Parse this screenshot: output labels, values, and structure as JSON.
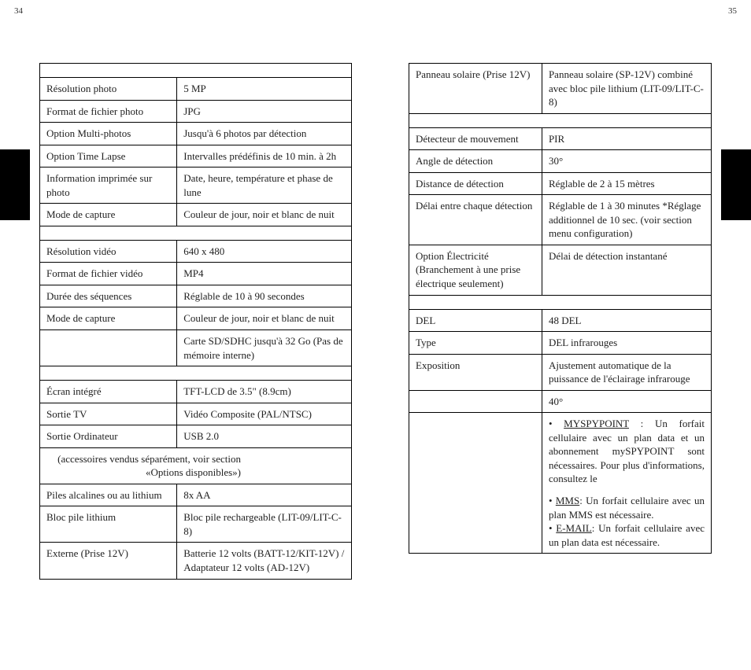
{
  "pageLeft": "34",
  "pageRight": "35",
  "leftTable": {
    "rows": [
      {
        "type": "empty"
      },
      {
        "label": "Résolution photo",
        "value": "5 MP"
      },
      {
        "label": "Format de fichier photo",
        "value": "JPG"
      },
      {
        "label": "Option Multi-photos",
        "value": "Jusqu'à 6 photos par détection"
      },
      {
        "label": "Option Time Lapse",
        "value": "Intervalles prédéfinis de 10 min. à 2h"
      },
      {
        "label": "Information imprimée sur photo",
        "value": "Date, heure, température et phase de lune"
      },
      {
        "label": "Mode de capture",
        "value": "Couleur de jour, noir et blanc de nuit"
      },
      {
        "type": "empty"
      },
      {
        "label": "Résolution vidéo",
        "value": "640 x 480"
      },
      {
        "label": "Format de fichier vidéo",
        "value": "MP4"
      },
      {
        "label": "Durée des séquences",
        "value": "Réglable de 10 à 90 secondes"
      },
      {
        "label": "Mode de capture",
        "value": "Couleur de jour, noir et blanc de nuit"
      },
      {
        "label": "",
        "value": "Carte SD/SDHC jusqu'à 32 Go (Pas de mémoire interne)"
      },
      {
        "type": "empty"
      },
      {
        "label": "Écran intégré",
        "value": "TFT-LCD de 3.5\" (8.9cm)"
      },
      {
        "label": "Sortie TV",
        "value": "Vidéo Composite (PAL/NTSC)"
      },
      {
        "label": "Sortie Ordinateur",
        "value": "USB 2.0"
      },
      {
        "type": "merged",
        "text": "(accessoires vendus séparément, voir section «Options disponibles»)"
      },
      {
        "label": "Piles alcalines ou au lithium",
        "value": "8x AA"
      },
      {
        "label": "Bloc pile lithium",
        "value": "Bloc pile rechargeable (LIT-09/LIT-C-8)"
      },
      {
        "label": "Externe (Prise 12V)",
        "value": "Batterie 12 volts (BATT-12/KIT-12V) / Adaptateur 12 volts (AD-12V)"
      }
    ]
  },
  "rightTable": {
    "rows": [
      {
        "label": "Panneau solaire (Prise 12V)",
        "value": "Panneau solaire (SP-12V) combiné avec bloc pile lithium (LIT-09/LIT-C-8)"
      },
      {
        "type": "empty"
      },
      {
        "label": "Détecteur de mouvement",
        "value": "PIR"
      },
      {
        "label": "Angle de détection",
        "value": "30°"
      },
      {
        "label": "Distance de détection",
        "value": "Réglable de 2 à 15 mètres"
      },
      {
        "label": "Délai entre chaque détection",
        "value": "Réglable de 1 à 30 minutes *Réglage additionnel de 10 sec. (voir section menu configuration)"
      },
      {
        "label": "Option Électricité (Branchement à une prise électrique seulement)",
        "value": "Délai de détection instantané"
      },
      {
        "type": "empty"
      },
      {
        "label": "DEL",
        "value": "48 DEL"
      },
      {
        "label": "Type",
        "value": "DEL infrarouges"
      },
      {
        "label": "Exposition",
        "value": "Ajustement automatique de la puissance de l'éclairage infrarouge"
      },
      {
        "label": "",
        "value": "40°"
      },
      {
        "type": "bullets",
        "label": "",
        "items": [
          {
            "pre": "MYSPYPOINT",
            "text": " : Un forfait cellulaire avec un plan data et un abonnement mySPYPOINT sont nécessaires. Pour plus d'informations, consultez le"
          },
          {
            "pre": "MMS",
            "text": ": Un forfait cellulaire avec un plan MMS est nécessaire."
          },
          {
            "pre": "E-MAIL",
            "text": ": Un forfait cellulaire avec un plan data est nécessaire."
          }
        ]
      }
    ]
  },
  "colors": {
    "text": "#222222",
    "border": "#000000",
    "background": "#ffffff",
    "bar": "#000000"
  }
}
